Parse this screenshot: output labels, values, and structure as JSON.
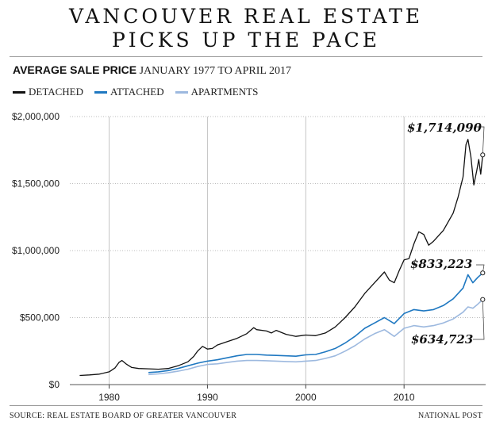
{
  "header": {
    "title_line1": "VANCOUVER REAL ESTATE",
    "title_line2": "PICKS UP THE PACE",
    "subtitle_bold": "AVERAGE SALE PRICE",
    "subtitle_light": "JANUARY 1977 TO APRIL 2017"
  },
  "footer": {
    "source": "SOURCE: REAL ESTATE BOARD OF GREATER VANCOUVER",
    "credit": "NATIONAL POST"
  },
  "chart_data": {
    "type": "line",
    "title": "AVERAGE SALE PRICE",
    "subtitle": "JANUARY 1977 TO APRIL 2017",
    "xlim": [
      1976,
      2018.3
    ],
    "ylim": [
      0,
      2000000
    ],
    "x_ticks": [
      1980,
      1990,
      2000,
      2010
    ],
    "x_tick_labels": [
      "1980",
      "1990",
      "2000",
      "2010"
    ],
    "y_ticks": [
      0,
      500000,
      1000000,
      1500000,
      2000000
    ],
    "y_tick_labels": [
      "$0",
      "$500,000",
      "$1,000,000",
      "$1,500,000",
      "$2,000,000"
    ],
    "grid": "vertical",
    "legend_position": "top-left",
    "series": [
      {
        "name": "DETACHED",
        "color": "#111111",
        "end_label": "$1,714,090",
        "points": [
          [
            1977.0,
            68000
          ],
          [
            1978.0,
            72000
          ],
          [
            1979.0,
            78000
          ],
          [
            1980.0,
            95000
          ],
          [
            1980.6,
            125000
          ],
          [
            1981.0,
            165000
          ],
          [
            1981.3,
            180000
          ],
          [
            1981.8,
            150000
          ],
          [
            1982.3,
            128000
          ],
          [
            1983.0,
            120000
          ],
          [
            1984.0,
            118000
          ],
          [
            1985.0,
            115000
          ],
          [
            1986.0,
            120000
          ],
          [
            1987.0,
            140000
          ],
          [
            1988.0,
            170000
          ],
          [
            1988.6,
            210000
          ],
          [
            1989.0,
            250000
          ],
          [
            1989.5,
            285000
          ],
          [
            1990.0,
            265000
          ],
          [
            1990.5,
            270000
          ],
          [
            1991.0,
            295000
          ],
          [
            1992.0,
            320000
          ],
          [
            1993.0,
            345000
          ],
          [
            1994.0,
            380000
          ],
          [
            1994.7,
            425000
          ],
          [
            1995.0,
            410000
          ],
          [
            1996.0,
            400000
          ],
          [
            1996.5,
            385000
          ],
          [
            1997.0,
            405000
          ],
          [
            1998.0,
            375000
          ],
          [
            1999.0,
            360000
          ],
          [
            2000.0,
            370000
          ],
          [
            2001.0,
            365000
          ],
          [
            2002.0,
            385000
          ],
          [
            2003.0,
            430000
          ],
          [
            2004.0,
            500000
          ],
          [
            2005.0,
            580000
          ],
          [
            2006.0,
            680000
          ],
          [
            2007.0,
            760000
          ],
          [
            2008.0,
            840000
          ],
          [
            2008.5,
            780000
          ],
          [
            2009.0,
            760000
          ],
          [
            2009.5,
            850000
          ],
          [
            2010.0,
            930000
          ],
          [
            2010.5,
            940000
          ],
          [
            2011.0,
            1050000
          ],
          [
            2011.5,
            1140000
          ],
          [
            2012.0,
            1120000
          ],
          [
            2012.5,
            1040000
          ],
          [
            2013.0,
            1070000
          ],
          [
            2014.0,
            1150000
          ],
          [
            2015.0,
            1280000
          ],
          [
            2015.5,
            1400000
          ],
          [
            2016.0,
            1550000
          ],
          [
            2016.3,
            1790000
          ],
          [
            2016.5,
            1830000
          ],
          [
            2016.8,
            1700000
          ],
          [
            2017.1,
            1490000
          ],
          [
            2017.4,
            1600000
          ],
          [
            2017.6,
            1680000
          ],
          [
            2017.8,
            1570000
          ],
          [
            2018.0,
            1714090
          ]
        ]
      },
      {
        "name": "ATTACHED",
        "color": "#1f78c1",
        "end_label": "$833,223",
        "points": [
          [
            1984.0,
            90000
          ],
          [
            1985.0,
            95000
          ],
          [
            1986.0,
            105000
          ],
          [
            1987.0,
            120000
          ],
          [
            1988.0,
            140000
          ],
          [
            1989.0,
            160000
          ],
          [
            1990.0,
            175000
          ],
          [
            1991.0,
            185000
          ],
          [
            1992.0,
            200000
          ],
          [
            1993.0,
            215000
          ],
          [
            1994.0,
            225000
          ],
          [
            1995.0,
            225000
          ],
          [
            1996.0,
            220000
          ],
          [
            1997.0,
            218000
          ],
          [
            1998.0,
            215000
          ],
          [
            1999.0,
            212000
          ],
          [
            2000.0,
            222000
          ],
          [
            2001.0,
            225000
          ],
          [
            2002.0,
            245000
          ],
          [
            2003.0,
            270000
          ],
          [
            2004.0,
            310000
          ],
          [
            2005.0,
            360000
          ],
          [
            2006.0,
            420000
          ],
          [
            2007.0,
            460000
          ],
          [
            2008.0,
            500000
          ],
          [
            2009.0,
            455000
          ],
          [
            2010.0,
            530000
          ],
          [
            2011.0,
            560000
          ],
          [
            2012.0,
            550000
          ],
          [
            2013.0,
            560000
          ],
          [
            2014.0,
            590000
          ],
          [
            2015.0,
            640000
          ],
          [
            2016.0,
            720000
          ],
          [
            2016.5,
            820000
          ],
          [
            2017.0,
            760000
          ],
          [
            2017.5,
            800000
          ],
          [
            2018.0,
            833223
          ]
        ]
      },
      {
        "name": "APARTMENTS",
        "color": "#9db9df",
        "end_label": "$634,723",
        "points": [
          [
            1984.0,
            75000
          ],
          [
            1985.0,
            80000
          ],
          [
            1986.0,
            88000
          ],
          [
            1987.0,
            100000
          ],
          [
            1988.0,
            115000
          ],
          [
            1989.0,
            135000
          ],
          [
            1990.0,
            150000
          ],
          [
            1991.0,
            155000
          ],
          [
            1992.0,
            165000
          ],
          [
            1993.0,
            175000
          ],
          [
            1994.0,
            180000
          ],
          [
            1995.0,
            180000
          ],
          [
            1996.0,
            178000
          ],
          [
            1997.0,
            175000
          ],
          [
            1998.0,
            172000
          ],
          [
            1999.0,
            170000
          ],
          [
            2000.0,
            175000
          ],
          [
            2001.0,
            180000
          ],
          [
            2002.0,
            195000
          ],
          [
            2003.0,
            215000
          ],
          [
            2004.0,
            250000
          ],
          [
            2005.0,
            290000
          ],
          [
            2006.0,
            340000
          ],
          [
            2007.0,
            380000
          ],
          [
            2008.0,
            410000
          ],
          [
            2009.0,
            360000
          ],
          [
            2010.0,
            420000
          ],
          [
            2011.0,
            440000
          ],
          [
            2012.0,
            430000
          ],
          [
            2013.0,
            440000
          ],
          [
            2014.0,
            460000
          ],
          [
            2015.0,
            490000
          ],
          [
            2016.0,
            540000
          ],
          [
            2016.5,
            580000
          ],
          [
            2017.0,
            570000
          ],
          [
            2017.5,
            600000
          ],
          [
            2018.0,
            634723
          ]
        ]
      }
    ]
  }
}
